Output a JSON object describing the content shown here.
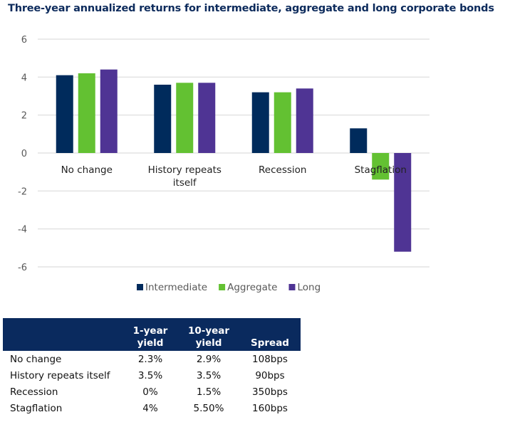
{
  "title": "Three-year annualized returns for intermediate, aggregate and long corporate bonds",
  "chart_data": {
    "type": "bar",
    "title": "Three-year annualized returns for intermediate, aggregate and long corporate bonds",
    "categories": [
      "No change",
      "History repeats itself",
      "Recession",
      "Stagflation"
    ],
    "category_lines": [
      [
        "No change"
      ],
      [
        "History repeats",
        "itself"
      ],
      [
        "Recession"
      ],
      [
        "Stagflation"
      ]
    ],
    "series": [
      {
        "name": "Intermediate",
        "color": "#002b5c",
        "values": [
          4.1,
          3.6,
          3.2,
          1.3
        ]
      },
      {
        "name": "Aggregate",
        "color": "#63c132",
        "values": [
          4.2,
          3.7,
          3.2,
          -1.4
        ]
      },
      {
        "name": "Long",
        "color": "#4f3494",
        "values": [
          4.4,
          3.7,
          3.4,
          -5.2
        ]
      }
    ],
    "xlabel": "",
    "ylabel": "",
    "ylim": [
      -6,
      6
    ],
    "yticks": [
      6,
      4,
      2,
      0,
      -2,
      -4,
      -6
    ],
    "ytick_labels": [
      "6",
      "4",
      "2",
      "0",
      "-2",
      "-4",
      "-6"
    ],
    "grid": true,
    "legend_position": "bottom"
  },
  "table": {
    "headers": [
      {
        "line1": "",
        "line2": ""
      },
      {
        "line1": "1-year",
        "line2": "yield"
      },
      {
        "line1": "10-year",
        "line2": "yield"
      },
      {
        "line1": "",
        "line2": "Spread"
      }
    ],
    "rows": [
      [
        "No change",
        "2.3%",
        "2.9%",
        "108bps"
      ],
      [
        "History repeats itself",
        "3.5%",
        "3.5%",
        "90bps"
      ],
      [
        "Recession",
        "0%",
        "1.5%",
        "350bps"
      ],
      [
        "Stagflation",
        "4%",
        "5.50%",
        "160bps"
      ]
    ],
    "header_color": "#0a2a5e"
  }
}
